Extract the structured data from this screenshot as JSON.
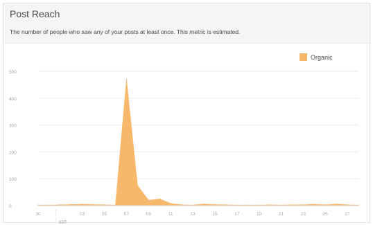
{
  "header": {
    "title": "Post Reach",
    "subtitle": "The number of people who saw any of your posts at least once. This metric is estimated."
  },
  "colors": {
    "fill": "#f7b86b",
    "grid": "#ececec",
    "tick": "#a5a5a5"
  },
  "chart_data": {
    "type": "area",
    "title": "Post Reach",
    "xlabel": "",
    "ylabel": "",
    "ylim": [
      0,
      500
    ],
    "yticks": [
      0,
      100,
      200,
      300,
      400,
      500
    ],
    "grid": true,
    "legend_position": "top-right",
    "month_label": "SEP",
    "x_tick_labels": [
      "30",
      "03",
      "05",
      "07",
      "09",
      "11",
      "13",
      "15",
      "17",
      "19",
      "21",
      "23",
      "25",
      "27"
    ],
    "series": [
      {
        "name": "Organic",
        "x": [
          "Aug 30",
          "Aug 31",
          "Sep 01",
          "Sep 02",
          "Sep 03",
          "Sep 04",
          "Sep 05",
          "Sep 06",
          "Sep 07",
          "Sep 08",
          "Sep 09",
          "Sep 10",
          "Sep 11",
          "Sep 12",
          "Sep 13",
          "Sep 14",
          "Sep 15",
          "Sep 16",
          "Sep 17",
          "Sep 18",
          "Sep 19",
          "Sep 20",
          "Sep 21",
          "Sep 22",
          "Sep 23",
          "Sep 24",
          "Sep 25",
          "Sep 26",
          "Sep 27",
          "Sep 28"
        ],
        "values": [
          2,
          2,
          3,
          4,
          5,
          4,
          3,
          2,
          470,
          75,
          20,
          25,
          8,
          3,
          2,
          6,
          4,
          3,
          2,
          2,
          2,
          3,
          2,
          3,
          3,
          5,
          3,
          6,
          3,
          2
        ]
      }
    ]
  }
}
